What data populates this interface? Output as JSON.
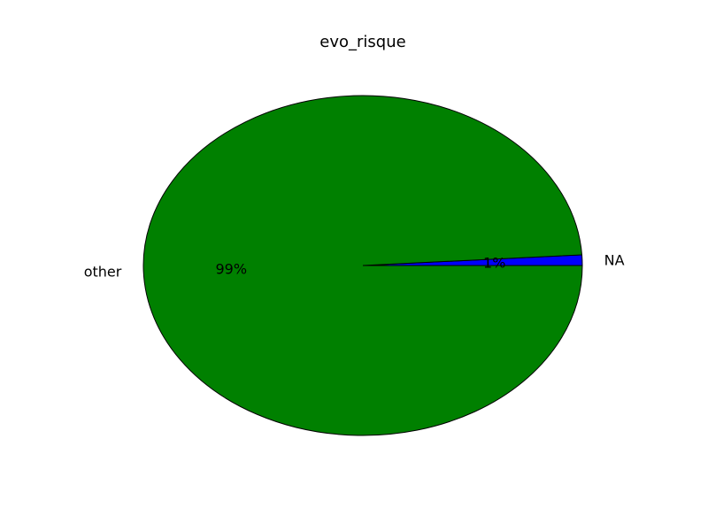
{
  "chart_data": {
    "type": "pie",
    "title": "evo_risque",
    "slices": [
      {
        "label": "NA",
        "value": 1,
        "percent_label": "1%",
        "color": "#0000ff"
      },
      {
        "label": "other",
        "value": 99,
        "percent_label": "99%",
        "color": "#008000"
      }
    ],
    "edge_color": "#000000"
  }
}
